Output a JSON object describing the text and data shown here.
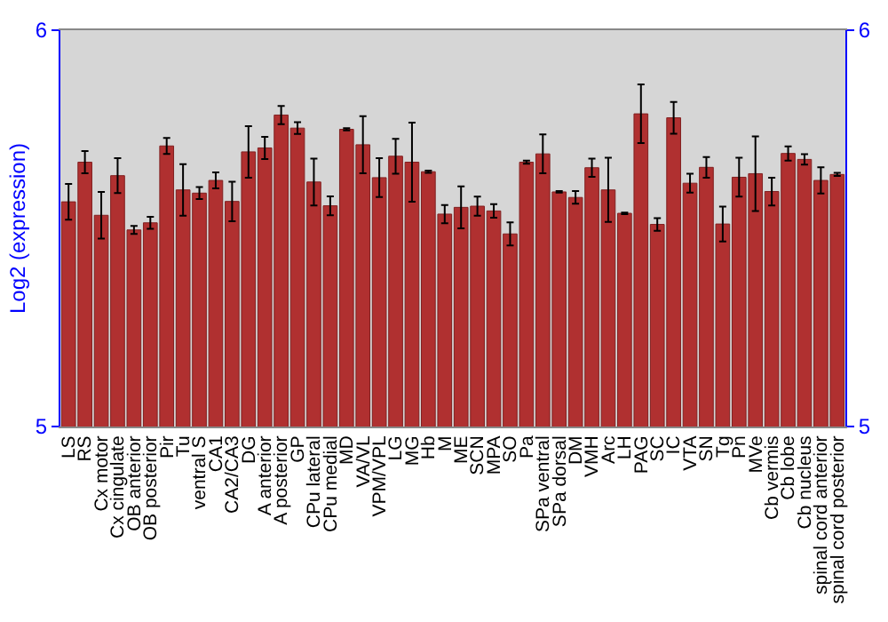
{
  "chart_data": {
    "type": "bar",
    "ylabel": "Log2 (expression)",
    "categories": [
      "LS",
      "RS",
      "Cx motor",
      "Cx cingulate",
      "OB anterior",
      "OB posterior",
      "Pir",
      "Tu",
      "ventral S",
      "CA1",
      "CA2/CA3",
      "DG",
      "A anterior",
      "A posterior",
      "GP",
      "CPu lateral",
      "CPu medial",
      "MD",
      "VA/VL",
      "VPM/VPL",
      "LG",
      "MG",
      "Hb",
      "M",
      "ME",
      "SCN",
      "MPA",
      "SO",
      "Pa",
      "SPa ventral",
      "SPa dorsal",
      "DM",
      "VMH",
      "Arc",
      "LH",
      "PAG",
      "SC",
      "IC",
      "VTA",
      "SN",
      "Tg",
      "Pn",
      "MVe",
      "Cb vermis",
      "Cb lobe",
      "Cb nucleus",
      "spinal cord anterior",
      "spinal cord posterior"
    ],
    "series": [
      {
        "color": "#b03030",
        "values": [
          5.567,
          5.667,
          5.533,
          5.633,
          5.496,
          5.514,
          5.708,
          5.597,
          5.589,
          5.621,
          5.568,
          5.693,
          5.703,
          5.786,
          5.753,
          5.617,
          5.557,
          5.75,
          5.711,
          5.628,
          5.682,
          5.667,
          5.643,
          5.536,
          5.553,
          5.556,
          5.544,
          5.486,
          5.667,
          5.688,
          5.592,
          5.578,
          5.653,
          5.597,
          5.538,
          5.789,
          5.51,
          5.779,
          5.614,
          5.654,
          5.511,
          5.629,
          5.638,
          5.593,
          5.689,
          5.674,
          5.621,
          5.636
        ],
        "errors": [
          0.045,
          0.028,
          0.059,
          0.044,
          0.01,
          0.015,
          0.02,
          0.065,
          0.015,
          0.02,
          0.05,
          0.065,
          0.028,
          0.023,
          0.015,
          0.059,
          0.024,
          0.003,
          0.072,
          0.049,
          0.044,
          0.1,
          0.003,
          0.023,
          0.053,
          0.024,
          0.017,
          0.029,
          0.004,
          0.049,
          0.002,
          0.016,
          0.023,
          0.081,
          0.002,
          0.074,
          0.016,
          0.04,
          0.024,
          0.026,
          0.044,
          0.049,
          0.094,
          0.035,
          0.018,
          0.013,
          0.033,
          0.004
        ]
      }
    ],
    "ylim": [
      5,
      6
    ],
    "yticks": [
      5,
      6
    ],
    "y2lim": [
      5,
      6
    ],
    "y2ticks": [
      5,
      6
    ]
  }
}
